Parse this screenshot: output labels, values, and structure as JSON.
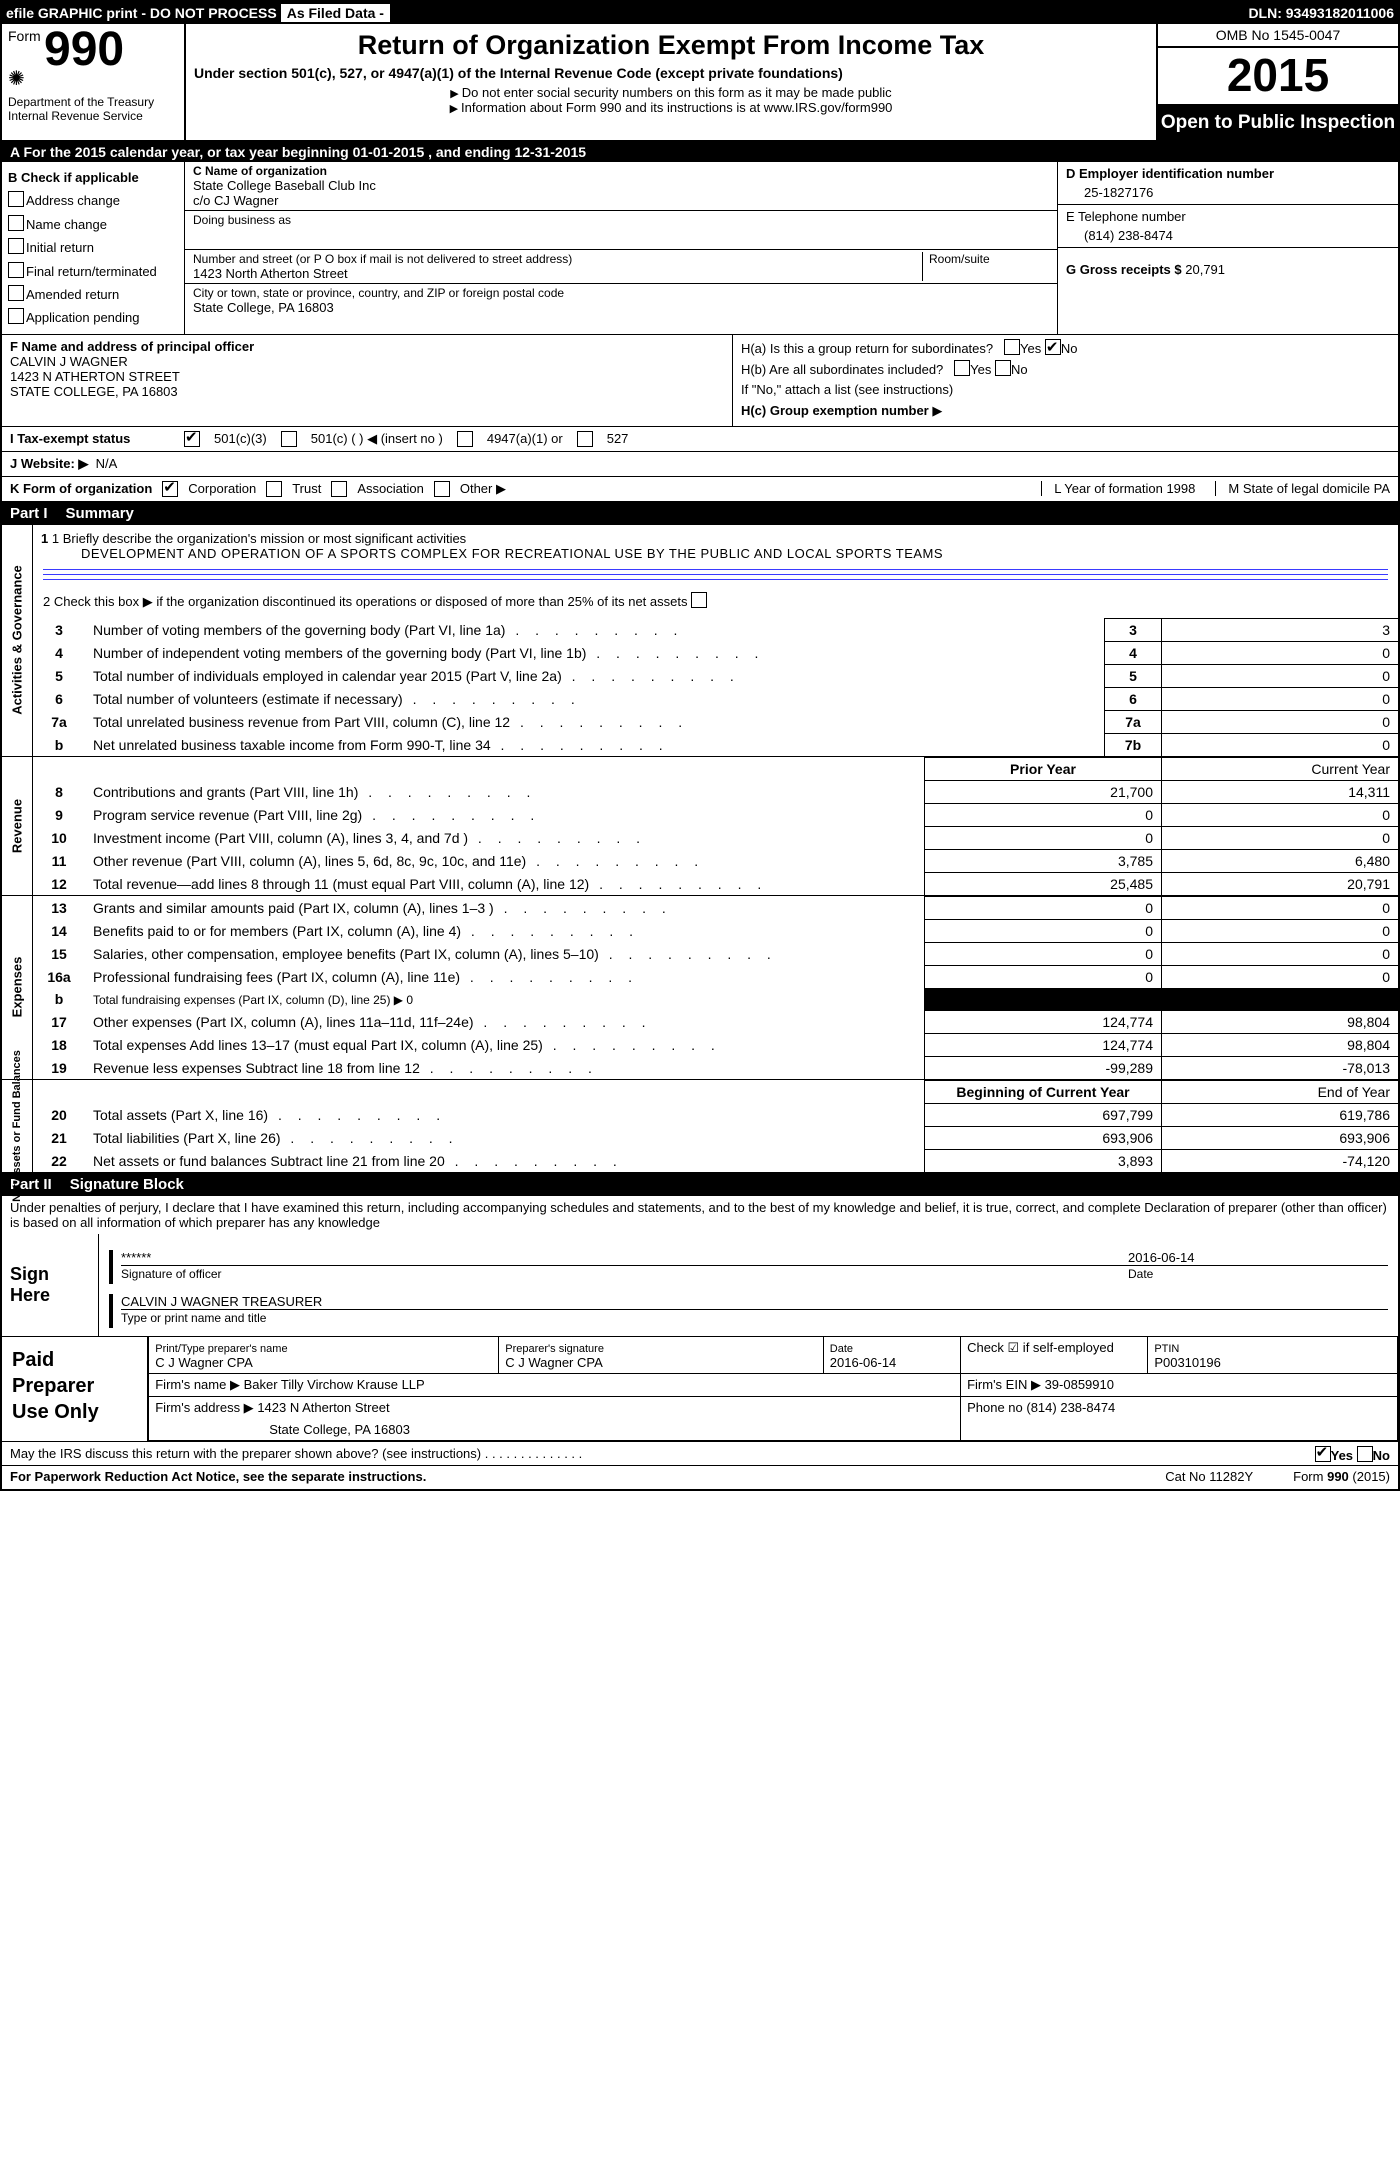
{
  "topbar": {
    "efile": "efile GRAPHIC print - DO NOT PROCESS",
    "asfiled": "As Filed Data -",
    "dln_label": "DLN:",
    "dln": "93493182011006"
  },
  "header": {
    "form_word": "Form",
    "form_num": "990",
    "dept": "Department of the Treasury",
    "irs": "Internal Revenue Service",
    "title": "Return of Organization Exempt From Income Tax",
    "subtitle": "Under section 501(c), 527, or 4947(a)(1) of the Internal Revenue Code (except private foundations)",
    "note1": "Do not enter social security numbers on this form as it may be made public",
    "note2": "Information about Form 990 and its instructions is at www.IRS.gov/form990",
    "omb": "OMB No 1545-0047",
    "year": "2015",
    "openpublic": "Open to Public Inspection"
  },
  "secA": {
    "line": "A  For the 2015 calendar year, or tax year beginning 01-01-2015   , and ending 12-31-2015"
  },
  "B": {
    "hdr": "B  Check if applicable",
    "items": [
      "Address change",
      "Name change",
      "Initial return",
      "Final return/terminated",
      "Amended return",
      "Application pending"
    ]
  },
  "C": {
    "lbl_name": "C Name of organization",
    "name": "State College Baseball Club Inc",
    "co": "c/o CJ Wagner",
    "dba_lbl": "Doing business as",
    "addr_lbl": "Number and street (or P O  box if mail is not delivered to street address)",
    "room_lbl": "Room/suite",
    "addr": "1423 North Atherton Street",
    "city_lbl": "City or town, state or province, country, and ZIP or foreign postal code",
    "city": "State College, PA  16803"
  },
  "D": {
    "lbl": "D Employer identification number",
    "val": "25-1827176"
  },
  "E": {
    "lbl": "E Telephone number",
    "val": "(814) 238-8474"
  },
  "G": {
    "lbl": "G Gross receipts $",
    "val": "20,791"
  },
  "F": {
    "lbl": "F   Name and address of principal officer",
    "name": "CALVIN J WAGNER",
    "addr": "1423 N ATHERTON STREET",
    "city": "STATE COLLEGE, PA  16803"
  },
  "H": {
    "a": "H(a)  Is this a group return for subordinates?",
    "b": "H(b)  Are all subordinates included?",
    "note": "If \"No,\" attach a list  (see instructions)",
    "c": "H(c)   Group exemption number"
  },
  "I": {
    "lbl": "I  Tax-exempt status",
    "opts": [
      "501(c)(3)",
      "501(c) (  ) ◀ (insert no )",
      "4947(a)(1) or",
      "527"
    ]
  },
  "J": {
    "lbl": "J  Website: ▶",
    "val": "N/A"
  },
  "K": {
    "lbl": "K Form of organization",
    "opts": [
      "Corporation",
      "Trust",
      "Association",
      "Other ▶"
    ],
    "L": "L Year of formation  1998",
    "M": "M State of legal domicile  PA"
  },
  "partI": {
    "title": "Part I",
    "sub": "Summary",
    "side1": "Activities & Governance",
    "side2": "Revenue",
    "side3": "Expenses",
    "side4": "Net Assets or Fund Balances",
    "l1_lbl": "1 Briefly describe the organization's mission or most significant activities",
    "l1_txt": "DEVELOPMENT AND OPERATION OF A SPORTS COMPLEX FOR RECREATIONAL USE BY THE PUBLIC AND LOCAL SPORTS TEAMS",
    "l2": "2  Check this box ▶   if the organization discontinued its operations or disposed of more than 25% of its net assets",
    "rows_gov": [
      {
        "n": "3",
        "d": "Number of voting members of the governing body (Part VI, line 1a)",
        "c": "3",
        "v": "3"
      },
      {
        "n": "4",
        "d": "Number of independent voting members of the governing body (Part VI, line 1b)",
        "c": "4",
        "v": "0"
      },
      {
        "n": "5",
        "d": "Total number of individuals employed in calendar year 2015 (Part V, line 2a)",
        "c": "5",
        "v": "0"
      },
      {
        "n": "6",
        "d": "Total number of volunteers (estimate if necessary)",
        "c": "6",
        "v": "0"
      },
      {
        "n": "7a",
        "d": "Total unrelated business revenue from Part VIII, column (C), line 12",
        "c": "7a",
        "v": "0"
      },
      {
        "n": "b",
        "d": "Net unrelated business taxable income from Form 990-T, line 34",
        "c": "7b",
        "v": "0"
      }
    ],
    "hdr_prior": "Prior Year",
    "hdr_curr": "Current Year",
    "rows_rev": [
      {
        "n": "8",
        "d": "Contributions and grants (Part VIII, line 1h)",
        "p": "21,700",
        "c": "14,311"
      },
      {
        "n": "9",
        "d": "Program service revenue (Part VIII, line 2g)",
        "p": "0",
        "c": "0"
      },
      {
        "n": "10",
        "d": "Investment income (Part VIII, column (A), lines 3, 4, and 7d )",
        "p": "0",
        "c": "0"
      },
      {
        "n": "11",
        "d": "Other revenue (Part VIII, column (A), lines 5, 6d, 8c, 9c, 10c, and 11e)",
        "p": "3,785",
        "c": "6,480"
      },
      {
        "n": "12",
        "d": "Total revenue—add lines 8 through 11 (must equal Part VIII, column (A), line 12)",
        "p": "25,485",
        "c": "20,791"
      }
    ],
    "rows_exp": [
      {
        "n": "13",
        "d": "Grants and similar amounts paid (Part IX, column (A), lines 1–3 )",
        "p": "0",
        "c": "0"
      },
      {
        "n": "14",
        "d": "Benefits paid to or for members (Part IX, column (A), line 4)",
        "p": "0",
        "c": "0"
      },
      {
        "n": "15",
        "d": "Salaries, other compensation, employee benefits (Part IX, column (A), lines 5–10)",
        "p": "0",
        "c": "0"
      },
      {
        "n": "16a",
        "d": "Professional fundraising fees (Part IX, column (A), line 11e)",
        "p": "0",
        "c": "0"
      },
      {
        "n": "b",
        "d": "Total fundraising expenses (Part IX, column (D), line 25) ▶ 0",
        "p": "BLACK",
        "c": "BLACK"
      },
      {
        "n": "17",
        "d": "Other expenses (Part IX, column (A), lines 11a–11d, 11f–24e)",
        "p": "124,774",
        "c": "98,804"
      },
      {
        "n": "18",
        "d": "Total expenses  Add lines 13–17 (must equal Part IX, column (A), line 25)",
        "p": "124,774",
        "c": "98,804"
      },
      {
        "n": "19",
        "d": "Revenue less expenses  Subtract line 18 from line 12",
        "p": "-99,289",
        "c": "-78,013"
      }
    ],
    "hdr_begin": "Beginning of Current Year",
    "hdr_end": "End of Year",
    "rows_net": [
      {
        "n": "20",
        "d": "Total assets (Part X, line 16)",
        "p": "697,799",
        "c": "619,786"
      },
      {
        "n": "21",
        "d": "Total liabilities (Part X, line 26)",
        "p": "693,906",
        "c": "693,906"
      },
      {
        "n": "22",
        "d": "Net assets or fund balances  Subtract line 21 from line 20",
        "p": "3,893",
        "c": "-74,120"
      }
    ]
  },
  "partII": {
    "title": "Part II",
    "sub": "Signature Block"
  },
  "perjury": "Under penalties of perjury, I declare that I have examined this return, including accompanying schedules and statements, and to the best of my knowledge and belief, it is true, correct, and complete  Declaration of preparer (other than officer) is based on all information of which preparer has any knowledge",
  "sign": {
    "side": "Sign Here",
    "stars": "******",
    "sig_lbl": "Signature of officer",
    "date_lbl": "Date",
    "date": "2016-06-14",
    "name": "CALVIN J WAGNER  TREASURER",
    "name_lbl": "Type or print name and title"
  },
  "paid": {
    "side1": "Paid",
    "side2": "Preparer",
    "side3": "Use Only",
    "r1": {
      "a_lbl": "Print/Type preparer's name",
      "a": "C J Wagner CPA",
      "b_lbl": "Preparer's signature",
      "b": "C J Wagner CPA",
      "c_lbl": "Date",
      "c": "2016-06-14",
      "d_lbl": "Check ☑ if self-employed",
      "e_lbl": "PTIN",
      "e": "P00310196"
    },
    "r2": {
      "a_lbl": "Firm's name      ▶",
      "a": "Baker Tilly Virchow Krause LLP",
      "b_lbl": "Firm's EIN ▶",
      "b": "39-0859910"
    },
    "r3": {
      "a_lbl": "Firm's address ▶",
      "a": "1423 N Atherton Street",
      "b_lbl": "Phone no",
      "b": "(814) 238-8474"
    },
    "r4": {
      "a": "State College, PA  16803"
    }
  },
  "discuss": "May the IRS discuss this return with the preparer shown above? (see instructions)",
  "footer": {
    "a": "For Paperwork Reduction Act Notice, see the separate instructions.",
    "b": "Cat No  11282Y",
    "c": "Form 990 (2015)"
  }
}
